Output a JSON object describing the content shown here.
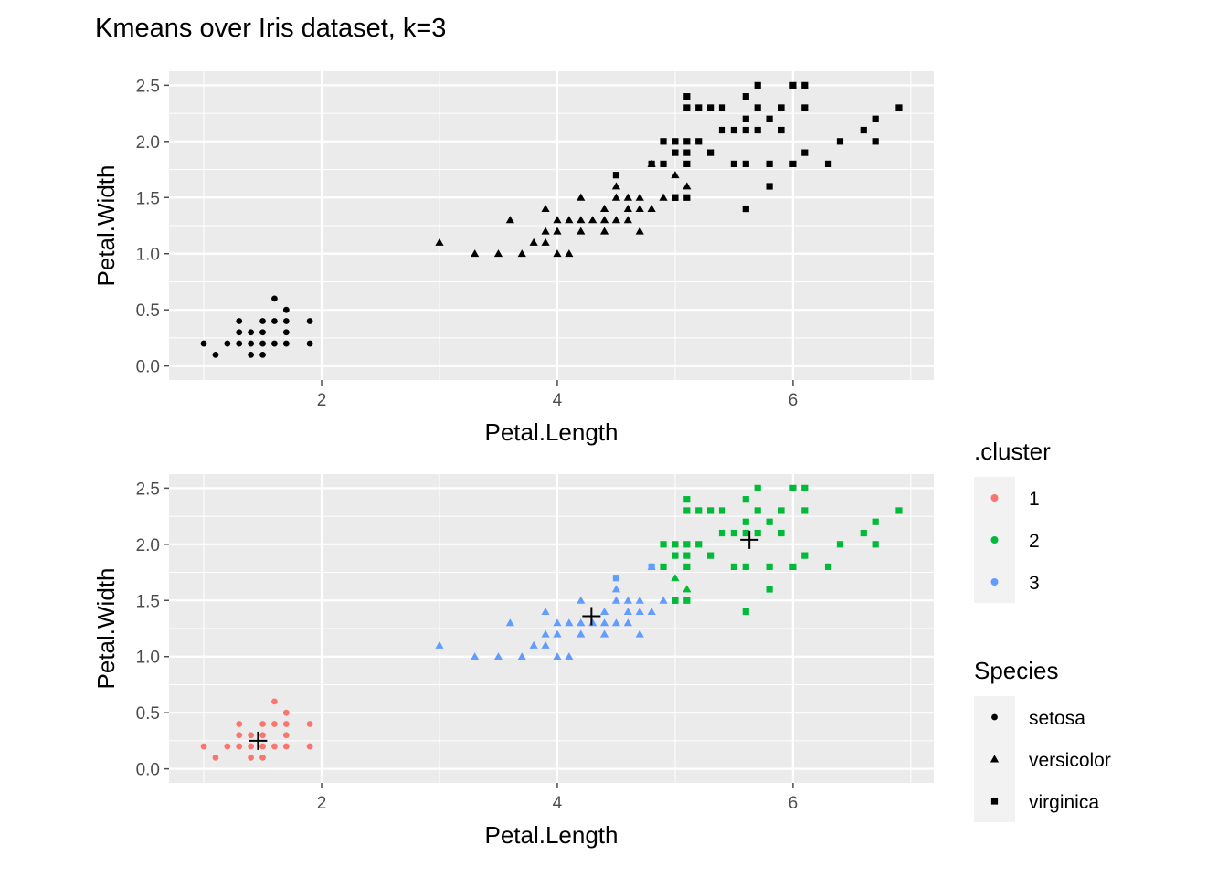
{
  "title": "Kmeans over Iris dataset, k=3",
  "colors": {
    "panel_bg": "#EBEBEB",
    "grid": "#FFFFFF",
    "tick": "#4D4D4D",
    "default_point": "#000000",
    "cluster_1": "#F8766D",
    "cluster_2": "#00BA38",
    "cluster_3": "#619CFF",
    "center_marker": "#000000"
  },
  "legend": {
    "cluster": {
      "title": ".cluster",
      "items": [
        "1",
        "2",
        "3"
      ]
    },
    "species": {
      "title": "Species",
      "items": [
        "setosa",
        "versicolor",
        "virginica"
      ],
      "shapes": [
        "circle",
        "triangle",
        "square"
      ]
    }
  },
  "chart_data": [
    {
      "type": "scatter",
      "panel": "top",
      "title": "Kmeans over Iris dataset, k=3",
      "xlabel": "Petal.Length",
      "ylabel": "Petal.Width",
      "xlim": [
        1,
        6.9
      ],
      "ylim": [
        0,
        2.5
      ],
      "xticks": [
        2,
        4,
        6
      ],
      "yticks": [
        0.0,
        0.5,
        1.0,
        1.5,
        2.0,
        2.5
      ],
      "xtick_labels": [
        "2",
        "4",
        "6"
      ],
      "ytick_labels": [
        "0.0",
        "0.5",
        "1.0",
        "1.5",
        "2.0",
        "2.5"
      ],
      "grid": true,
      "color_by": "none",
      "shape_by": "Species",
      "show_centers": false
    },
    {
      "type": "scatter",
      "panel": "bottom",
      "xlabel": "Petal.Length",
      "ylabel": "Petal.Width",
      "xlim": [
        1,
        6.9
      ],
      "ylim": [
        0,
        2.5
      ],
      "xticks": [
        2,
        4,
        6
      ],
      "yticks": [
        0.0,
        0.5,
        1.0,
        1.5,
        2.0,
        2.5
      ],
      "xtick_labels": [
        "2",
        "4",
        "6"
      ],
      "ytick_labels": [
        "0.0",
        "0.5",
        "1.0",
        "1.5",
        "2.0",
        "2.5"
      ],
      "grid": true,
      "color_by": ".cluster",
      "shape_by": "Species",
      "show_centers": true,
      "legend_position": "right",
      "centers": [
        {
          "cluster": "1",
          "x": 1.46,
          "y": 0.25
        },
        {
          "cluster": "2",
          "x": 5.63,
          "y": 2.04
        },
        {
          "cluster": "3",
          "x": 4.29,
          "y": 1.36
        }
      ]
    }
  ],
  "points": {
    "setosa": [
      [
        1.0,
        0.2
      ],
      [
        1.1,
        0.1
      ],
      [
        1.2,
        0.2
      ],
      [
        1.3,
        0.2
      ],
      [
        1.3,
        0.3
      ],
      [
        1.3,
        0.4
      ],
      [
        1.4,
        0.2
      ],
      [
        1.4,
        0.1
      ],
      [
        1.4,
        0.3
      ],
      [
        1.5,
        0.2
      ],
      [
        1.5,
        0.1
      ],
      [
        1.5,
        0.4
      ],
      [
        1.5,
        0.3
      ],
      [
        1.6,
        0.2
      ],
      [
        1.6,
        0.4
      ],
      [
        1.6,
        0.6
      ],
      [
        1.7,
        0.2
      ],
      [
        1.7,
        0.3
      ],
      [
        1.7,
        0.4
      ],
      [
        1.7,
        0.5
      ],
      [
        1.9,
        0.2
      ],
      [
        1.9,
        0.4
      ]
    ],
    "versicolor": [
      [
        3.0,
        1.1,
        3
      ],
      [
        3.3,
        1.0,
        3
      ],
      [
        3.5,
        1.0,
        3
      ],
      [
        3.6,
        1.3,
        3
      ],
      [
        3.7,
        1.0,
        3
      ],
      [
        3.8,
        1.1,
        3
      ],
      [
        3.9,
        1.1,
        3
      ],
      [
        3.9,
        1.2,
        3
      ],
      [
        3.9,
        1.4,
        3
      ],
      [
        4.0,
        1.0,
        3
      ],
      [
        4.0,
        1.2,
        3
      ],
      [
        4.0,
        1.3,
        3
      ],
      [
        4.1,
        1.0,
        3
      ],
      [
        4.1,
        1.3,
        3
      ],
      [
        4.2,
        1.2,
        3
      ],
      [
        4.2,
        1.3,
        3
      ],
      [
        4.2,
        1.5,
        3
      ],
      [
        4.3,
        1.3,
        3
      ],
      [
        4.4,
        1.2,
        3
      ],
      [
        4.4,
        1.3,
        3
      ],
      [
        4.4,
        1.4,
        3
      ],
      [
        4.5,
        1.3,
        3
      ],
      [
        4.5,
        1.5,
        3
      ],
      [
        4.5,
        1.6,
        3
      ],
      [
        4.6,
        1.3,
        3
      ],
      [
        4.6,
        1.4,
        3
      ],
      [
        4.6,
        1.5,
        3
      ],
      [
        4.7,
        1.2,
        3
      ],
      [
        4.7,
        1.4,
        3
      ],
      [
        4.7,
        1.5,
        3
      ],
      [
        4.8,
        1.4,
        3
      ],
      [
        4.8,
        1.8,
        3
      ],
      [
        4.9,
        1.5,
        3
      ],
      [
        5.0,
        1.7,
        2
      ],
      [
        5.1,
        1.6,
        2
      ]
    ],
    "virginica": [
      [
        4.5,
        1.7,
        3
      ],
      [
        4.8,
        1.8,
        3
      ],
      [
        4.9,
        1.8,
        2
      ],
      [
        4.9,
        2.0,
        2
      ],
      [
        5.0,
        1.5,
        3
      ],
      [
        5.0,
        1.5,
        2
      ],
      [
        5.0,
        1.9,
        2
      ],
      [
        5.0,
        2.0,
        2
      ],
      [
        5.1,
        1.5,
        2
      ],
      [
        5.1,
        1.8,
        2
      ],
      [
        5.1,
        1.9,
        2
      ],
      [
        5.1,
        2.0,
        2
      ],
      [
        5.1,
        2.3,
        2
      ],
      [
        5.1,
        2.4,
        2
      ],
      [
        5.2,
        2.0,
        2
      ],
      [
        5.2,
        2.3,
        2
      ],
      [
        5.3,
        1.9,
        2
      ],
      [
        5.3,
        2.3,
        2
      ],
      [
        5.4,
        2.1,
        2
      ],
      [
        5.4,
        2.3,
        2
      ],
      [
        5.5,
        1.8,
        2
      ],
      [
        5.5,
        2.1,
        2
      ],
      [
        5.6,
        1.4,
        2
      ],
      [
        5.6,
        1.8,
        2
      ],
      [
        5.6,
        2.1,
        2
      ],
      [
        5.6,
        2.2,
        2
      ],
      [
        5.6,
        2.4,
        2
      ],
      [
        5.7,
        2.1,
        2
      ],
      [
        5.7,
        2.3,
        2
      ],
      [
        5.7,
        2.5,
        2
      ],
      [
        5.8,
        1.6,
        2
      ],
      [
        5.8,
        1.8,
        2
      ],
      [
        5.8,
        2.2,
        2
      ],
      [
        5.9,
        2.1,
        2
      ],
      [
        5.9,
        2.3,
        2
      ],
      [
        6.0,
        1.8,
        2
      ],
      [
        6.0,
        2.5,
        2
      ],
      [
        6.1,
        1.9,
        2
      ],
      [
        6.1,
        2.3,
        2
      ],
      [
        6.1,
        2.5,
        2
      ],
      [
        6.3,
        1.8,
        2
      ],
      [
        6.4,
        2.0,
        2
      ],
      [
        6.6,
        2.1,
        2
      ],
      [
        6.7,
        2.0,
        2
      ],
      [
        6.7,
        2.2,
        2
      ],
      [
        6.9,
        2.3,
        2
      ]
    ]
  }
}
